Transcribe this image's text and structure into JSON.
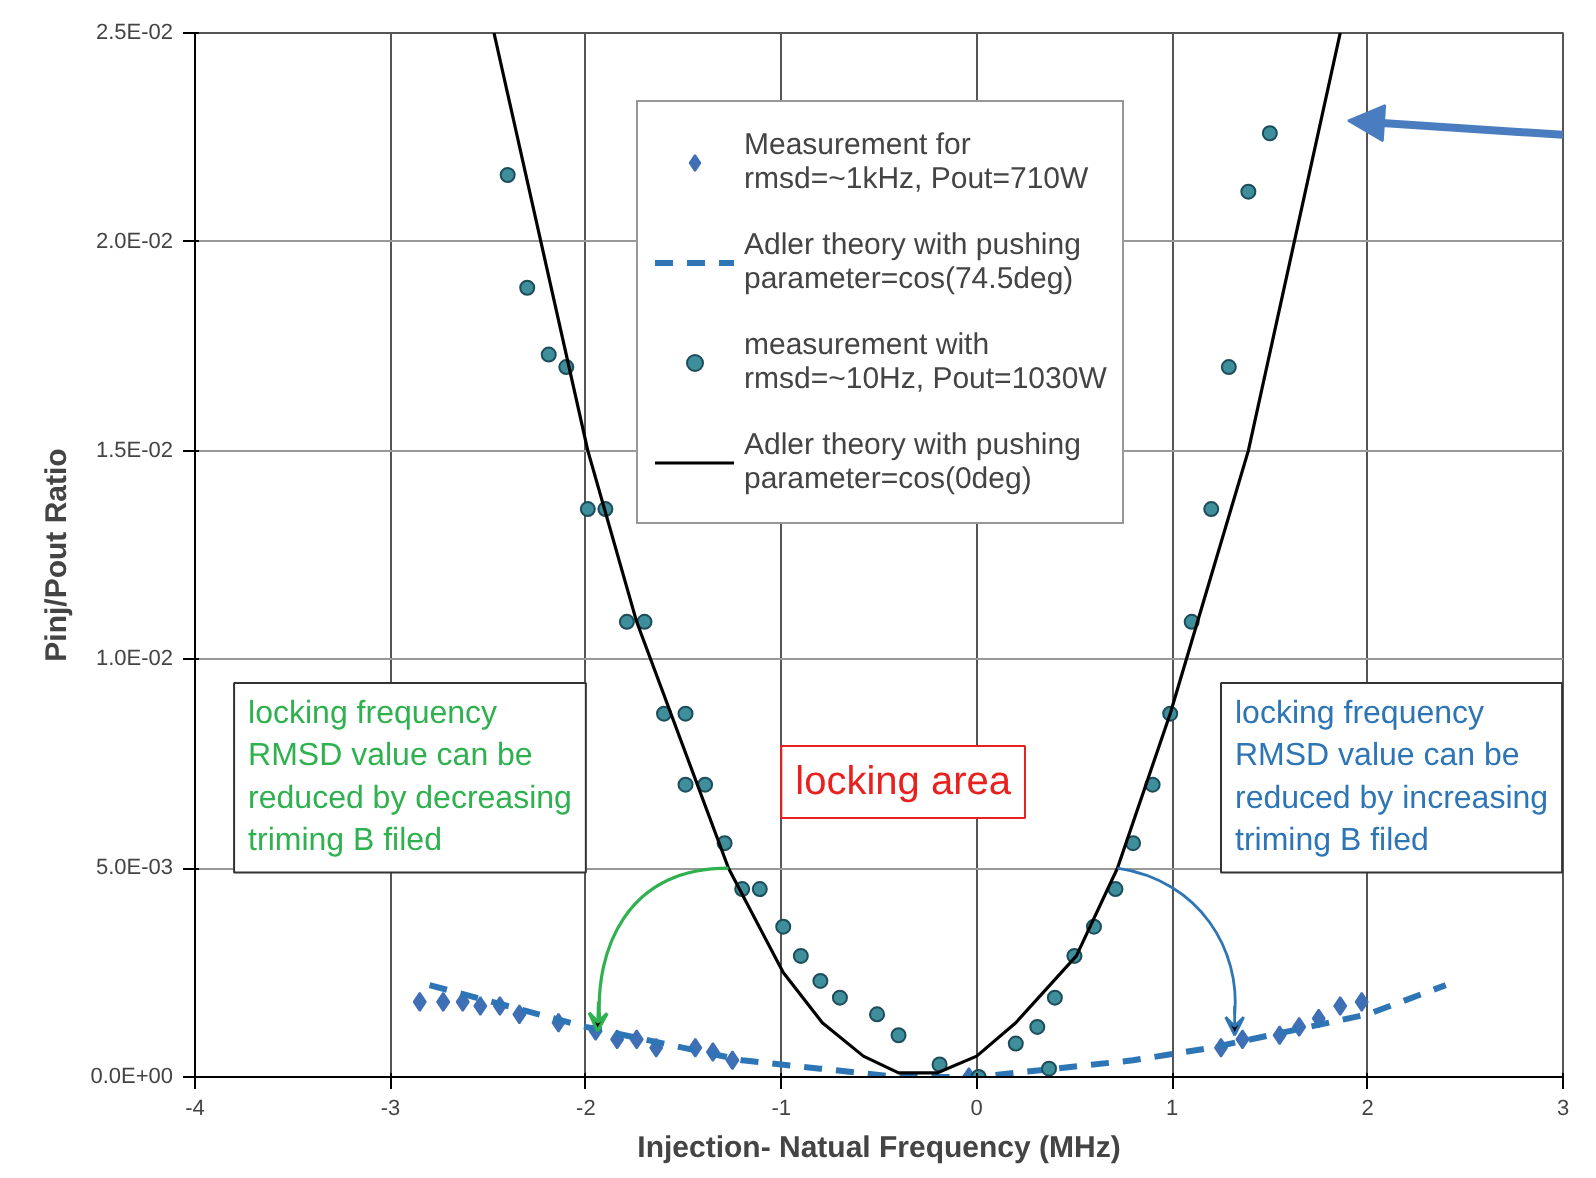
{
  "chart_data": {
    "type": "scatter",
    "xlabel": "Injection- Natual Frequency (MHz)",
    "ylabel": "Pinj/Pout Ratio",
    "xlim": [
      -4,
      3
    ],
    "xticks": [
      -4,
      -3,
      -2,
      -1,
      0,
      1,
      2,
      3
    ],
    "ylim": [
      0,
      0.025
    ],
    "yticks": [
      {
        "value": 0,
        "label": "0.0E+00"
      },
      {
        "value": 0.005,
        "label": "5.0E-03"
      },
      {
        "value": 0.01,
        "label": "1.0E-02"
      },
      {
        "value": 0.015,
        "label": "1.5E-02"
      },
      {
        "value": 0.02,
        "label": "2.0E-02"
      },
      {
        "value": 0.025,
        "label": "2.5E-02"
      }
    ],
    "grid": true,
    "legend": "top right",
    "series": [
      {
        "name": "Measurement for rmsd=~1kHz, Pout=710W",
        "marker": "diamond",
        "color": "#3f6fb5",
        "x": [
          -2.85,
          -2.73,
          -2.63,
          -2.54,
          -2.44,
          -2.34,
          -2.14,
          -1.95,
          -1.84,
          -1.74,
          -1.64,
          -1.44,
          -1.35,
          -1.25,
          -0.04,
          1.25,
          1.36,
          1.55,
          1.65,
          1.75,
          1.86,
          1.97
        ],
        "values": [
          0.0018,
          0.0018,
          0.0018,
          0.0017,
          0.0017,
          0.0015,
          0.0013,
          0.0011,
          0.0009,
          0.0009,
          0.0007,
          0.0007,
          0.0006,
          0.0004,
          0.0,
          0.0007,
          0.0009,
          0.001,
          0.0012,
          0.0014,
          0.0017,
          0.0018
        ]
      },
      {
        "name": "Adler theory with pushing parameter=cos(74.5deg)",
        "type": "line",
        "line_style": "dashed",
        "marker": "none",
        "color": "#2e75b6",
        "x": [
          -2.8,
          -2.4,
          -2.0,
          -1.6,
          -1.2,
          -0.8,
          -0.4,
          -0.2,
          0.0,
          0.4,
          0.8,
          1.2,
          1.6,
          2.0,
          2.4
        ],
        "values": [
          0.0022,
          0.0017,
          0.0012,
          0.0008,
          0.0004,
          0.0002,
          0.0,
          0.0,
          0.0,
          0.0002,
          0.0004,
          0.0007,
          0.0011,
          0.0015,
          0.0022
        ]
      },
      {
        "name": "measurement with rmsd=~10Hz, Pout=1030W",
        "marker": "circle",
        "color": "#3e8e9c",
        "x": [
          -2.4,
          -2.3,
          -2.19,
          -2.1,
          -1.99,
          -1.9,
          -1.79,
          -1.7,
          -1.6,
          -1.49,
          -1.49,
          -1.39,
          -1.29,
          -1.2,
          -1.11,
          -0.99,
          -0.9,
          -0.8,
          -0.7,
          -0.51,
          -0.4,
          -0.19,
          0.01,
          0.2,
          0.31,
          0.37,
          0.4,
          0.5,
          0.6,
          0.71,
          0.8,
          0.9,
          0.99,
          1.1,
          1.2,
          1.29,
          1.39,
          1.5
        ],
        "values": [
          0.0216,
          0.0189,
          0.0173,
          0.017,
          0.0136,
          0.0136,
          0.0109,
          0.0109,
          0.0087,
          0.0087,
          0.007,
          0.007,
          0.0056,
          0.0045,
          0.0045,
          0.0036,
          0.0029,
          0.0023,
          0.0019,
          0.0015,
          0.001,
          0.0003,
          0.0,
          0.0008,
          0.0012,
          0.0002,
          0.0019,
          0.0029,
          0.0036,
          0.0045,
          0.0056,
          0.007,
          0.0087,
          0.0109,
          0.0136,
          0.017,
          0.0212,
          0.0226
        ]
      },
      {
        "name": "Adler theory with pushing parameter=cos(0deg)",
        "type": "line",
        "line_style": "solid",
        "marker": "none",
        "color": "#000000",
        "x": [
          -2.47,
          -1.99,
          -1.74,
          -1.27,
          -0.99,
          -0.79,
          -0.58,
          -0.4,
          -0.2,
          0.0,
          0.2,
          0.51,
          0.72,
          0.99,
          1.39,
          1.86
        ],
        "values": [
          0.025,
          0.015,
          0.0109,
          0.005,
          0.0025,
          0.0013,
          0.0005,
          0.0001,
          0.0001,
          0.0005,
          0.0013,
          0.0029,
          0.005,
          0.0087,
          0.015,
          0.025
        ]
      }
    ],
    "annotations": [
      "locking frequency\nRMSD value can be\nreduced by decreasing\n triming B filed",
      "locking area",
      "locking frequency\nRMSD value can be\nreduced by increasing\n triming B filed"
    ]
  }
}
